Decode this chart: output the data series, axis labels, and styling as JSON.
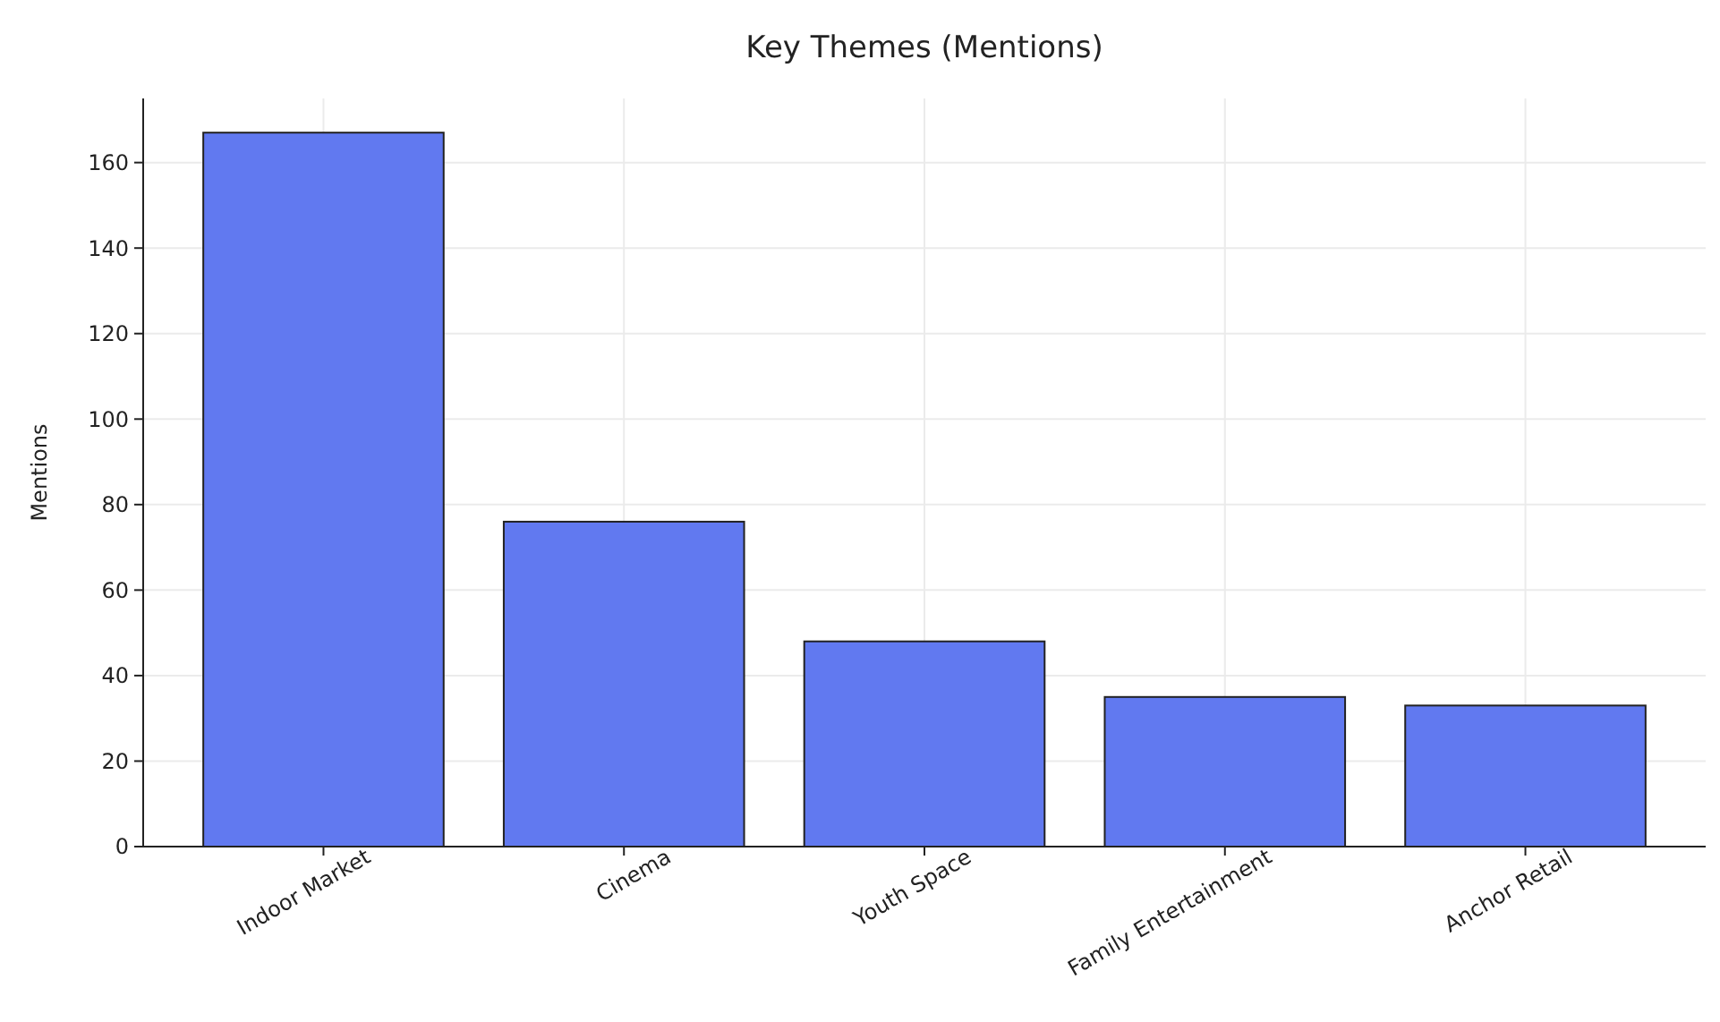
{
  "chart_data": {
    "type": "bar",
    "title": "Key Themes (Mentions)",
    "ylabel": "Mentions",
    "categories": [
      "Indoor Market",
      "Cinema",
      "Youth Space",
      "Family Entertainment",
      "Anchor Retail"
    ],
    "values": [
      167,
      76,
      48,
      35,
      33
    ],
    "color": "#6179f0",
    "ylim": [
      0,
      175
    ],
    "yticks": [
      0,
      20,
      40,
      60,
      80,
      100,
      120,
      140,
      160
    ],
    "grid": true
  }
}
